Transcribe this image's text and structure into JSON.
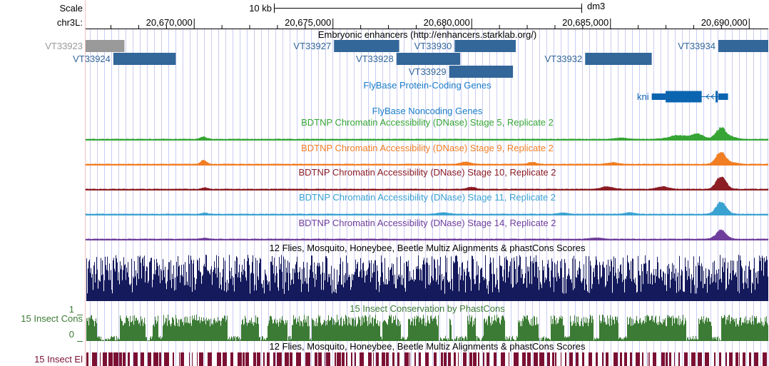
{
  "ruler": {
    "scale_label": "Scale",
    "scale_bar_label": "10 kb",
    "assembly": "dm3",
    "chrom_label": "chr3L:",
    "ticks": [
      {
        "pos": 20670000,
        "label": "20,670,000"
      },
      {
        "pos": 20675000,
        "label": "20,675,000"
      },
      {
        "pos": 20680000,
        "label": "20,680,000"
      },
      {
        "pos": 20685000,
        "label": "20,685,000"
      },
      {
        "pos": 20690000,
        "label": "20,690,000"
      }
    ]
  },
  "view": {
    "start": 20666100,
    "end": 20690700
  },
  "colors": {
    "enhancer": "#336699",
    "enhancer_gray": "#999999",
    "gene": "#0b64b0",
    "noncoding": "#1a7cc8",
    "stage5": "#36a535",
    "stage9": "#f17e23",
    "stage10": "#8c1d24",
    "stage11": "#3aa2d1",
    "stage14": "#6f3d9b",
    "multiz": "#151a5c",
    "phastcons": "#3c7b35",
    "elements": "#7b1033",
    "grid": "#ccccf5",
    "window_line": "#f5c0c0"
  },
  "tracks": {
    "enhancers": {
      "title": "Embryonic enhancers (http://enhancers.starklab.org/)",
      "items": [
        {
          "id": "VT33923",
          "label": "VT33923",
          "start": 20666100,
          "end": 20667500,
          "row": 0,
          "gray": true
        },
        {
          "id": "VT33924",
          "label": "VT33924",
          "start": 20667100,
          "end": 20669350,
          "row": 1,
          "gray": false
        },
        {
          "id": "VT33927",
          "label": "VT33927",
          "start": 20675050,
          "end": 20677400,
          "row": 0,
          "gray": false
        },
        {
          "id": "VT33928",
          "label": "VT33928",
          "start": 20677300,
          "end": 20679600,
          "row": 1,
          "gray": false
        },
        {
          "id": "VT33929",
          "label": "VT33929",
          "start": 20679200,
          "end": 20681500,
          "row": 2,
          "gray": false
        },
        {
          "id": "VT33930",
          "label": "VT33930",
          "start": 20679400,
          "end": 20681600,
          "row": 0,
          "gray": false
        },
        {
          "id": "VT33932",
          "label": "VT33932",
          "start": 20684100,
          "end": 20686500,
          "row": 1,
          "gray": false
        },
        {
          "id": "VT33934",
          "label": "VT33934",
          "start": 20688900,
          "end": 20690700,
          "row": 0,
          "gray": false
        }
      ]
    },
    "coding_genes": {
      "title": "FlyBase Protein-Coding Genes",
      "genes": [
        {
          "name": "kni",
          "start": 20686500,
          "end": 20689250,
          "strand": "-",
          "blocks": [
            {
              "start": 20686500,
              "end": 20687000,
              "thick": false
            },
            {
              "start": 20687000,
              "end": 20688300,
              "thick": true
            },
            {
              "start": 20688800,
              "end": 20688880,
              "thick": true
            },
            {
              "start": 20688900,
              "end": 20689250,
              "thick": false
            }
          ]
        }
      ]
    },
    "noncoding_genes": {
      "title": "FlyBase Noncoding Genes"
    },
    "dnase": [
      {
        "key": "stage5",
        "title": "BDTNP Chromatin Accessibility (DNase) Stage 5, Replicate 2",
        "peaks": [
          {
            "center": 20670350,
            "height": 0.2,
            "width": 150
          },
          {
            "center": 20685400,
            "height": 0.1,
            "width": 300
          },
          {
            "center": 20687450,
            "height": 0.3,
            "width": 450
          },
          {
            "center": 20688150,
            "height": 0.4,
            "width": 300
          },
          {
            "center": 20689000,
            "height": 0.95,
            "width": 250
          },
          {
            "center": 20689450,
            "height": 0.15,
            "width": 200
          }
        ]
      },
      {
        "key": "stage9",
        "title": "BDTNP Chromatin Accessibility (DNase) Stage 9, Replicate 2",
        "peaks": [
          {
            "center": 20670350,
            "height": 0.3,
            "width": 150
          },
          {
            "center": 20679800,
            "height": 0.18,
            "width": 250
          },
          {
            "center": 20682200,
            "height": 0.15,
            "width": 200
          },
          {
            "center": 20685100,
            "height": 0.14,
            "width": 250
          },
          {
            "center": 20689000,
            "height": 1.0,
            "width": 250
          },
          {
            "center": 20689500,
            "height": 0.1,
            "width": 200
          }
        ]
      },
      {
        "key": "stage10",
        "title": "BDTNP Chromatin Accessibility (DNase) Stage 10, Replicate 2",
        "peaks": [
          {
            "center": 20670400,
            "height": 0.12,
            "width": 150
          },
          {
            "center": 20680000,
            "height": 0.18,
            "width": 200
          },
          {
            "center": 20684900,
            "height": 0.2,
            "width": 300
          },
          {
            "center": 20686900,
            "height": 0.2,
            "width": 300
          },
          {
            "center": 20689000,
            "height": 1.0,
            "width": 250
          }
        ]
      },
      {
        "key": "stage11",
        "title": "BDTNP Chromatin Accessibility (DNase) Stage 11, Replicate 2",
        "peaks": [
          {
            "center": 20670400,
            "height": 0.1,
            "width": 150
          },
          {
            "center": 20679000,
            "height": 0.12,
            "width": 300
          },
          {
            "center": 20683300,
            "height": 0.1,
            "width": 250
          },
          {
            "center": 20685700,
            "height": 0.12,
            "width": 250
          },
          {
            "center": 20689000,
            "height": 1.0,
            "width": 250
          }
        ]
      },
      {
        "key": "stage14",
        "title": "BDTNP Chromatin Accessibility (DNase) Stage 14, Replicate 2",
        "peaks": [
          {
            "center": 20670400,
            "height": 0.08,
            "width": 150
          },
          {
            "center": 20684500,
            "height": 0.1,
            "width": 300
          },
          {
            "center": 20689000,
            "height": 0.7,
            "width": 250
          }
        ]
      }
    ],
    "multiz": {
      "title": "12 Flies, Mosquito, Honeybee, Beetle Multiz Alignments & phastCons Scores"
    },
    "phastcons": {
      "title": "15 Insect Conservation by PhastCons",
      "left_label": "15 Insect Cons",
      "max_label": "1",
      "min_label": "0"
    },
    "elements": {
      "title": "12 Flies, Mosquito, Honeybee, Beetle Multiz Alignments & phastCons Scores",
      "left_label": "15 Insect El"
    }
  }
}
